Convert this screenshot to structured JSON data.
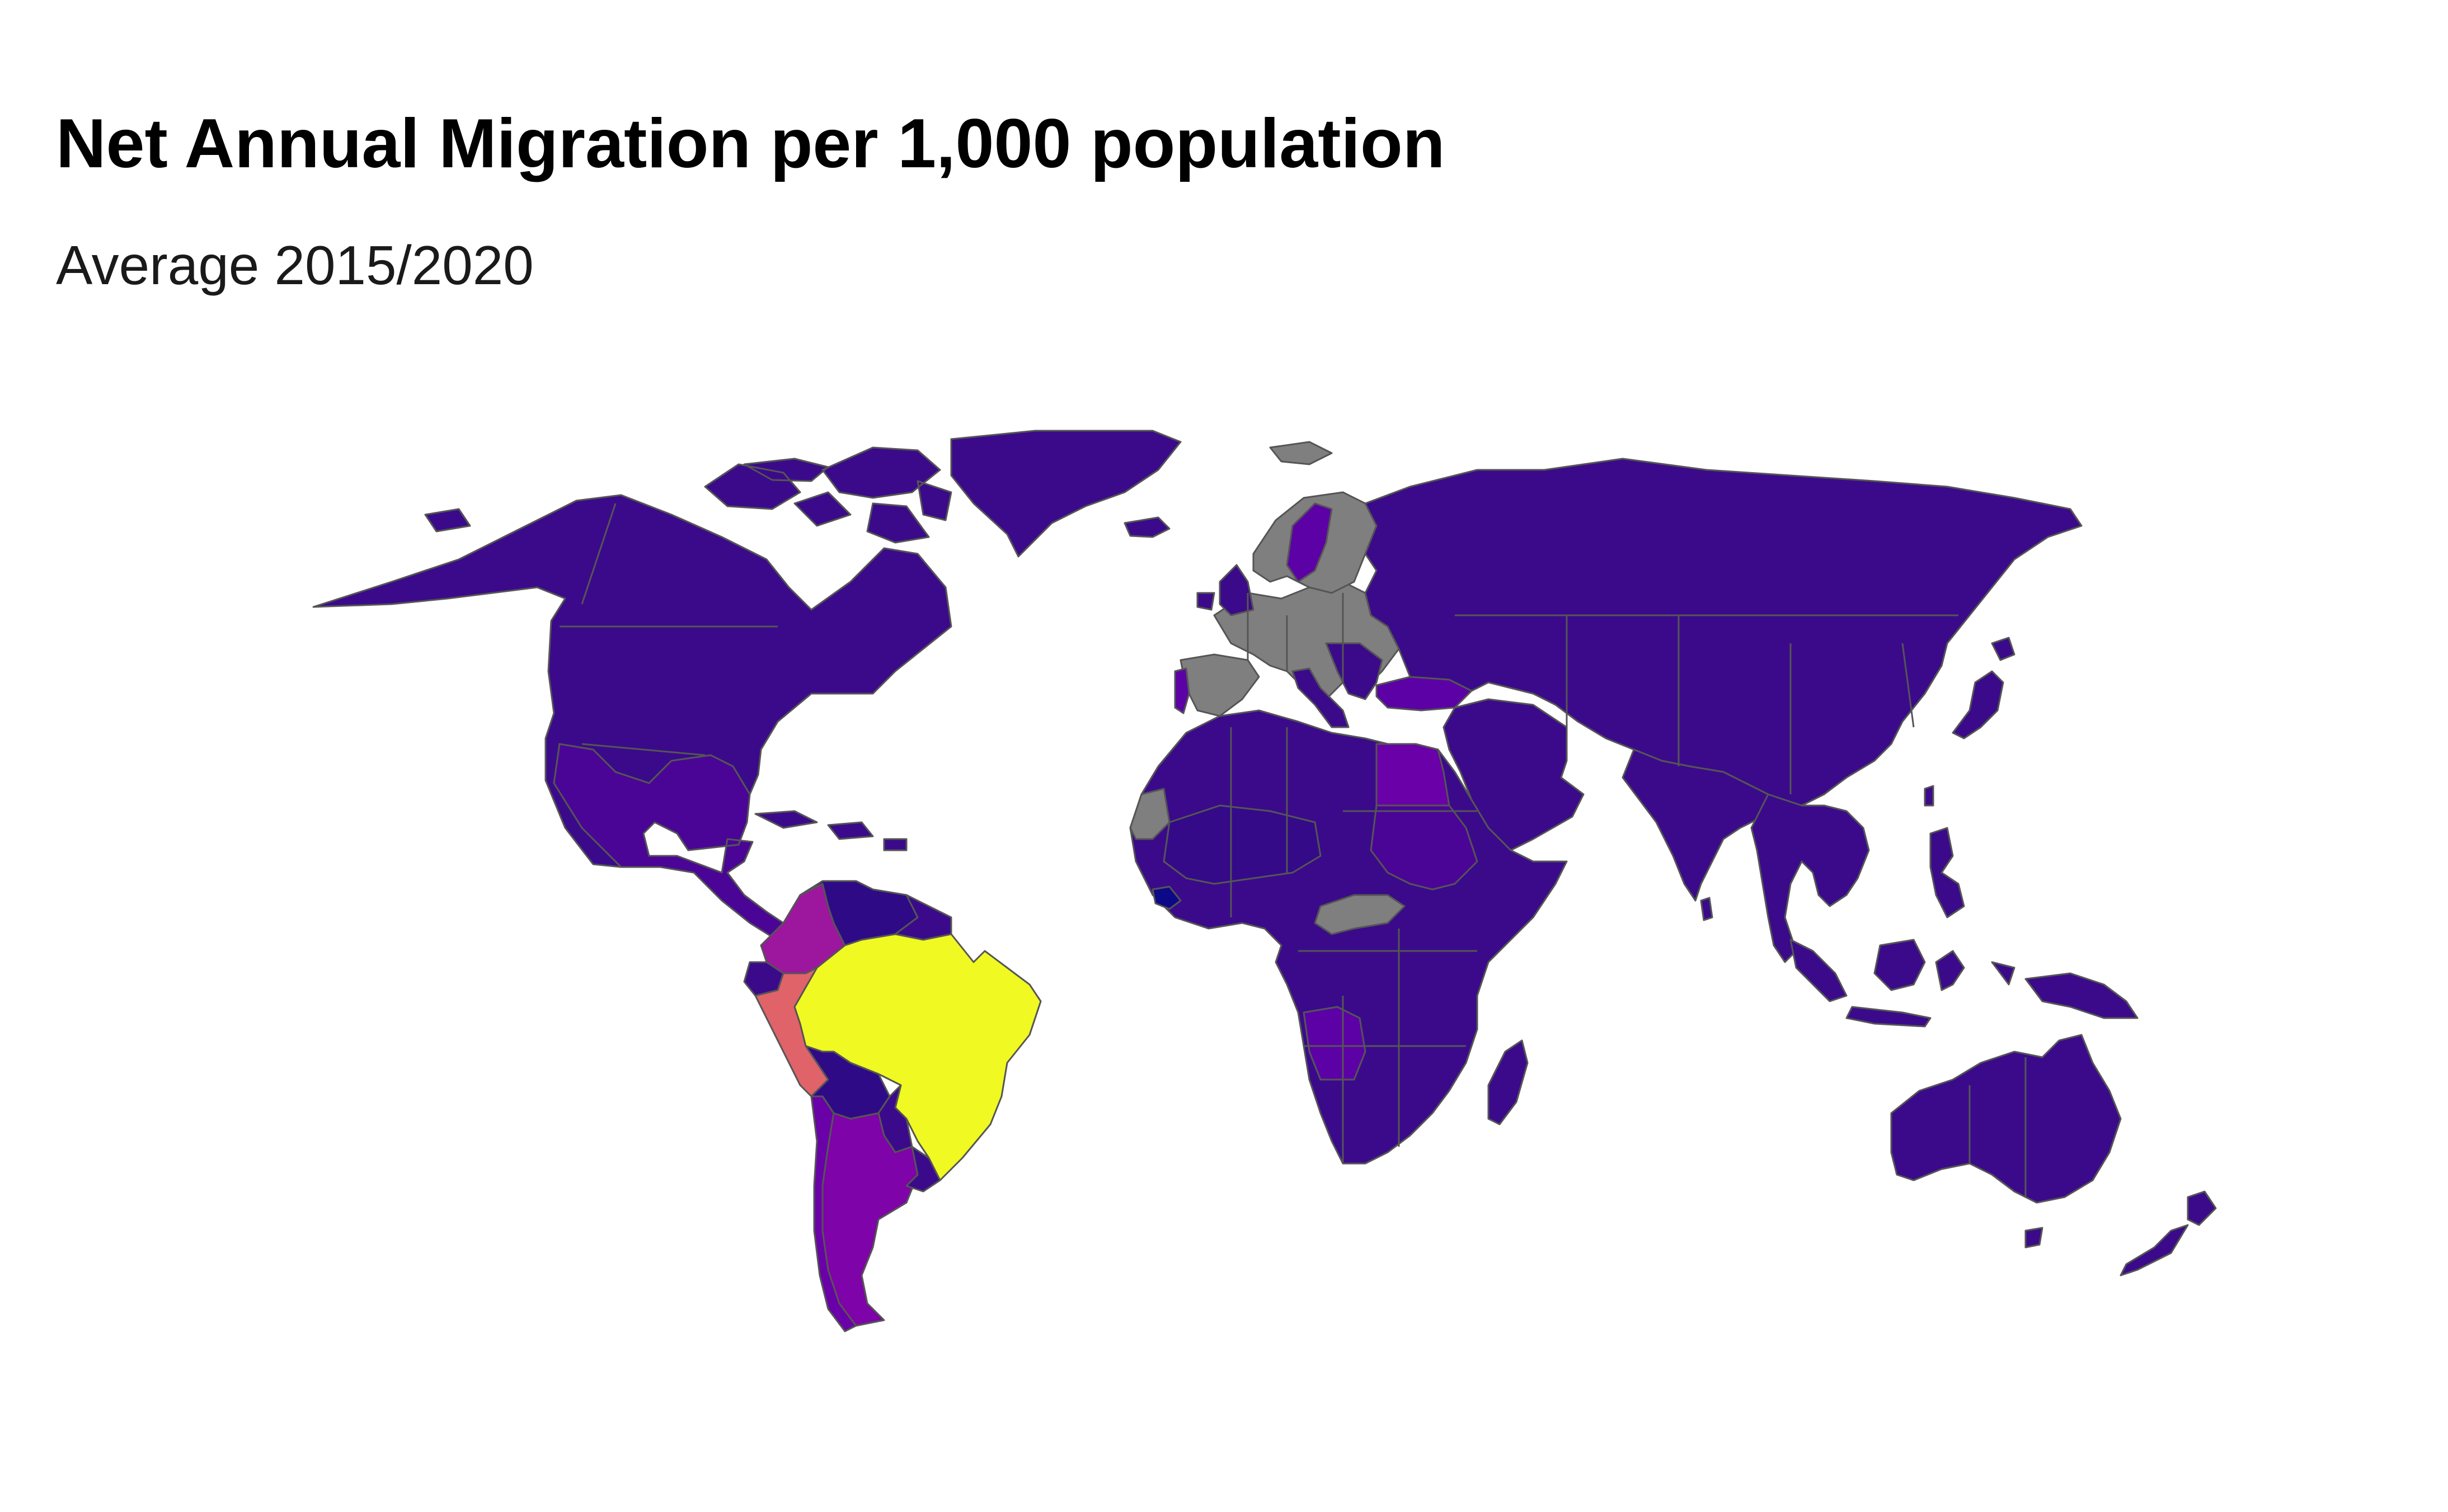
{
  "title": "Net Annual Migration per 1,000 population",
  "subtitle": "Average 2015/2020",
  "colors": {
    "background": "#ffffff",
    "default_fill": "#3b0a8a",
    "no_data": "#7f7f7f",
    "border": "#555555",
    "scale": [
      "#0d0887",
      "#3b0a8a",
      "#5c01a6",
      "#7e03a8",
      "#9c179e",
      "#cc4778",
      "#e0636a",
      "#f0f921"
    ]
  },
  "regions": [
    {
      "name": "north-america",
      "fill": "#3b0a8a"
    },
    {
      "name": "canada-islands",
      "fill": "#3b0a8a"
    },
    {
      "name": "greenland",
      "fill": "#3b0a8a"
    },
    {
      "name": "iceland",
      "fill": "#3b0a8a"
    },
    {
      "name": "central-america",
      "fill": "#4a0596"
    },
    {
      "name": "caribbean",
      "fill": "#3b0a8a"
    },
    {
      "name": "colombia",
      "fill": "#9c179e"
    },
    {
      "name": "venezuela",
      "fill": "#2f0a86"
    },
    {
      "name": "guianas",
      "fill": "#3b0a8a"
    },
    {
      "name": "ecuador",
      "fill": "#3b0a8a"
    },
    {
      "name": "peru",
      "fill": "#e0636a"
    },
    {
      "name": "brazil",
      "fill": "#f0f921"
    },
    {
      "name": "bolivia",
      "fill": "#2f0a86"
    },
    {
      "name": "paraguay",
      "fill": "#3b0a8a"
    },
    {
      "name": "chile",
      "fill": "#6a00a8"
    },
    {
      "name": "argentina",
      "fill": "#7e03a8"
    },
    {
      "name": "uruguay",
      "fill": "#3b0a8a"
    },
    {
      "name": "europe",
      "fill": "#7f7f7f"
    },
    {
      "name": "scandinavia",
      "fill": "#7f7f7f"
    },
    {
      "name": "sweden",
      "fill": "#5c01a6"
    },
    {
      "name": "british-isles",
      "fill": "#3b0a8a"
    },
    {
      "name": "iberia",
      "fill": "#7f7f7f"
    },
    {
      "name": "portugal",
      "fill": "#5c01a6"
    },
    {
      "name": "italy",
      "fill": "#3b0a8a"
    },
    {
      "name": "balkans",
      "fill": "#3b0a8a"
    },
    {
      "name": "turkey",
      "fill": "#5c01a6"
    },
    {
      "name": "russia-asia",
      "fill": "#3b0a8a"
    },
    {
      "name": "middle-east",
      "fill": "#3b0a8a"
    },
    {
      "name": "india",
      "fill": "#3b0a8a"
    },
    {
      "name": "sri-lanka",
      "fill": "#3b0a8a"
    },
    {
      "name": "southeast-asia",
      "fill": "#3b0a8a"
    },
    {
      "name": "japan",
      "fill": "#3b0a8a"
    },
    {
      "name": "taiwan",
      "fill": "#3b0a8a"
    },
    {
      "name": "philippines",
      "fill": "#3b0a8a"
    },
    {
      "name": "indonesia",
      "fill": "#3b0a8a"
    },
    {
      "name": "new-guinea",
      "fill": "#3b0a8a"
    },
    {
      "name": "africa",
      "fill": "#3b0a8a"
    },
    {
      "name": "egypt",
      "fill": "#6a00a8"
    },
    {
      "name": "sudan",
      "fill": "#4a0596"
    },
    {
      "name": "mali-niger",
      "fill": "#340a88"
    },
    {
      "name": "western-sahara",
      "fill": "#7f7f7f"
    },
    {
      "name": "liberia",
      "fill": "#0d0887"
    },
    {
      "name": "car",
      "fill": "#7f7f7f"
    },
    {
      "name": "angola",
      "fill": "#5c01a6"
    },
    {
      "name": "madagascar",
      "fill": "#3b0a8a"
    },
    {
      "name": "australia",
      "fill": "#3b0a8a"
    },
    {
      "name": "tasmania",
      "fill": "#3b0a8a"
    },
    {
      "name": "new-zealand",
      "fill": "#3b0a8a"
    },
    {
      "name": "svalbard",
      "fill": "#7f7f7f"
    }
  ]
}
